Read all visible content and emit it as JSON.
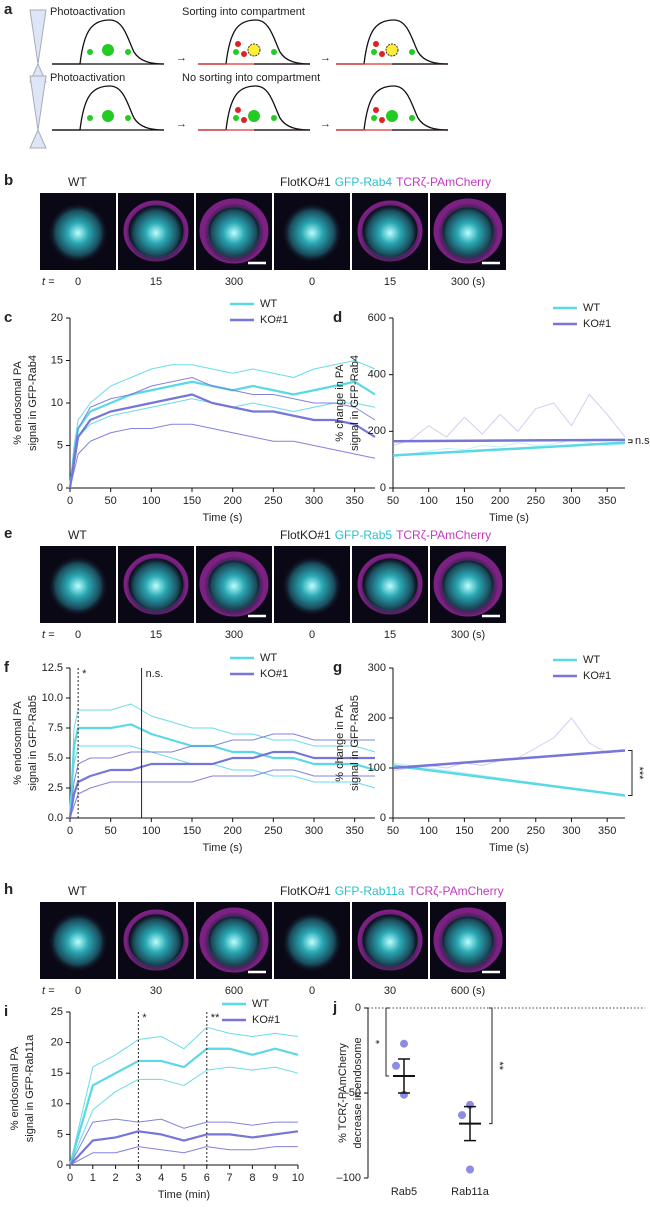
{
  "figure": {
    "a": {
      "label": "a",
      "row1": "Photoactivation",
      "row1_result": "Sorting into compartment",
      "row2": "Photoactivation",
      "row2_result": "No sorting into compartment"
    },
    "b": {
      "label": "b",
      "left": "WT",
      "right": "FlotKO#1",
      "green": "GFP-Rab4",
      "magenta": "TCRζ-PAmCherry",
      "t": "t =",
      "times": [
        "0",
        "15",
        "300",
        "0",
        "15",
        "300 (s)"
      ]
    },
    "e": {
      "label": "e",
      "left": "WT",
      "right": "FlotKO#1",
      "green": "GFP-Rab5",
      "magenta": "TCRζ-PAmCherry",
      "t": "t =",
      "times": [
        "0",
        "15",
        "300",
        "0",
        "15",
        "300 (s)"
      ]
    },
    "h": {
      "label": "h",
      "left": "WT",
      "right": "FlotKO#1",
      "green": "GFP-Rab11a",
      "magenta": "TCRζ-PAmCherry",
      "t": "t =",
      "times": [
        "0",
        "30",
        "600",
        "0",
        "30",
        "600 (s)"
      ]
    }
  },
  "chart_data": [
    {
      "type": "line",
      "panel": "c",
      "ylabel": [
        "% endosomal PA",
        "signal in GFP-Rab4"
      ],
      "xlabel": "Time (s)",
      "x": [
        0,
        5,
        10,
        25,
        50,
        75,
        100,
        125,
        150,
        175,
        200,
        225,
        250,
        275,
        300,
        325,
        350,
        375
      ],
      "xlim": [
        0,
        375
      ],
      "xticks": [
        0,
        50,
        100,
        150,
        200,
        250,
        300,
        350
      ],
      "ylim": [
        0,
        20
      ],
      "yticks": [
        0,
        5,
        10,
        15,
        20
      ],
      "series": [
        {
          "name": "WT",
          "color": "#5ad8e6",
          "values": [
            0,
            4,
            7,
            9,
            10,
            11,
            11.5,
            12,
            12.5,
            12,
            11.5,
            12,
            11.5,
            11,
            11.5,
            12,
            12.5,
            11
          ],
          "upper": [
            0,
            5,
            8,
            10,
            12,
            13,
            14,
            14.5,
            14.5,
            14,
            13.5,
            14,
            13.5,
            13,
            14,
            14.5,
            15,
            14
          ],
          "lower": [
            0,
            3,
            6,
            7.5,
            8.5,
            9,
            9.5,
            10,
            10.5,
            10,
            9.5,
            10,
            9.5,
            9,
            9.5,
            10,
            10,
            9.5
          ]
        },
        {
          "name": "KO#1",
          "color": "#7676d8",
          "values": [
            0,
            3,
            6,
            8,
            9,
            9.5,
            10,
            10.5,
            11,
            10,
            9.5,
            9,
            9,
            8.5,
            8,
            8,
            7.5,
            6
          ],
          "upper": [
            0,
            4,
            7,
            9.5,
            10.5,
            11,
            12,
            12.5,
            13,
            12,
            11.5,
            11,
            11,
            10.5,
            10,
            10,
            9.5,
            8
          ],
          "lower": [
            0,
            2,
            4,
            5.5,
            6.5,
            7,
            7,
            7.5,
            7.5,
            7,
            6.5,
            6,
            5.5,
            5.5,
            5,
            4.5,
            4,
            3.5
          ]
        }
      ]
    },
    {
      "type": "line",
      "panel": "d",
      "ylabel": [
        "% change in PA",
        "signal in GFP-Rab4"
      ],
      "xlabel": "Time (s)",
      "x": [
        50,
        75,
        100,
        125,
        150,
        175,
        200,
        225,
        250,
        275,
        300,
        325,
        350,
        375
      ],
      "xlim": [
        50,
        375
      ],
      "xticks": [
        50,
        100,
        150,
        200,
        250,
        300,
        350
      ],
      "ylim": [
        0,
        600
      ],
      "yticks": [
        0,
        200,
        400,
        600
      ],
      "series": [
        {
          "name": "WT",
          "color": "#5ad8e6",
          "values": [
            110,
            120,
            130,
            140,
            135,
            150,
            145,
            160,
            150,
            155,
            170,
            160,
            150,
            155
          ],
          "fit": [
            115,
            160
          ]
        },
        {
          "name": "KO#1",
          "color": "#7676d8",
          "values": [
            150,
            170,
            220,
            180,
            250,
            190,
            260,
            200,
            280,
            300,
            220,
            330,
            260,
            180
          ],
          "fit": [
            165,
            170
          ]
        }
      ],
      "annotations": [
        {
          "text": "n.s."
        }
      ]
    },
    {
      "type": "line",
      "panel": "f",
      "ylabel": [
        "% endosomal PA",
        "signal in GFP-Rab5"
      ],
      "xlabel": "Time (s)",
      "x": [
        0,
        5,
        10,
        25,
        50,
        75,
        100,
        125,
        150,
        175,
        200,
        225,
        250,
        275,
        300,
        325,
        350,
        375
      ],
      "xlim": [
        0,
        375
      ],
      "xticks": [
        0,
        50,
        100,
        150,
        200,
        250,
        300,
        350
      ],
      "ylim": [
        0,
        12.5
      ],
      "yticks": [
        {
          "value": 0,
          "label": "0.0"
        },
        2.5,
        {
          "value": 5,
          "label": "5.0"
        },
        7.5,
        {
          "value": 10,
          "label": "10.0"
        },
        12.5
      ],
      "series": [
        {
          "name": "WT",
          "color": "#5ad8e6",
          "values": [
            0,
            6,
            7.5,
            7.5,
            7.5,
            7.8,
            7,
            6.5,
            6,
            6,
            5.5,
            5.5,
            5,
            5,
            4.5,
            4.5,
            4.5,
            4
          ],
          "upper": [
            0,
            7.5,
            9,
            9,
            9,
            9.5,
            8.5,
            8,
            7.5,
            7.5,
            7,
            7,
            6.5,
            6.5,
            6,
            6,
            6,
            5.5
          ],
          "lower": [
            0,
            4.5,
            6,
            6,
            6,
            6,
            5.5,
            5,
            4.5,
            4.5,
            4,
            4,
            3.5,
            3.5,
            3,
            3,
            3,
            2.5
          ]
        },
        {
          "name": "KO#1",
          "color": "#7676d8",
          "values": [
            0,
            2,
            3,
            3.5,
            4,
            4,
            4.5,
            4.5,
            4.5,
            4.5,
            5,
            5,
            5.5,
            5.5,
            5,
            5,
            5,
            5
          ],
          "upper": [
            0,
            3,
            4.5,
            5,
            5,
            5.5,
            5.5,
            5.5,
            6,
            6,
            6.5,
            6.5,
            7,
            7,
            6.5,
            6.5,
            6.5,
            6.5
          ],
          "lower": [
            0,
            1,
            2,
            2.5,
            3,
            3,
            3,
            3,
            3,
            3.5,
            3.5,
            3.5,
            4,
            4,
            3.5,
            3.5,
            3.5,
            3.5
          ]
        }
      ],
      "annotations": [
        {
          "text": "*",
          "x": 10,
          "style": "dotted"
        },
        {
          "text": "n.s.",
          "x": 88,
          "style": "solid"
        }
      ]
    },
    {
      "type": "line",
      "panel": "g",
      "ylabel": [
        "% change in PA",
        "signal in GFP-Rab5"
      ],
      "xlabel": "Time (s)",
      "x": [
        50,
        75,
        100,
        125,
        150,
        175,
        200,
        225,
        250,
        275,
        300,
        325,
        350,
        375
      ],
      "xlim": [
        50,
        375
      ],
      "xticks": [
        50,
        100,
        150,
        200,
        250,
        300,
        350
      ],
      "ylim": [
        0,
        300
      ],
      "yticks": [
        0,
        100,
        200,
        300
      ],
      "series": [
        {
          "name": "WT",
          "color": "#5ad8e6",
          "values": [
            110,
            105,
            100,
            95,
            90,
            85,
            80,
            75,
            70,
            65,
            60,
            55,
            50,
            45
          ],
          "fit": [
            105,
            45
          ]
        },
        {
          "name": "KO#1",
          "color": "#7676d8",
          "values": [
            95,
            100,
            105,
            100,
            110,
            105,
            115,
            120,
            140,
            160,
            200,
            150,
            130,
            135
          ],
          "fit": [
            100,
            135
          ]
        }
      ],
      "annotations": [
        {
          "text": "***"
        }
      ]
    },
    {
      "type": "line",
      "panel": "i",
      "ylabel": [
        "% endosomal PA",
        "signal in GFP-Rab11a"
      ],
      "xlabel": "Time (min)",
      "x": [
        0,
        1,
        2,
        3,
        4,
        5,
        6,
        7,
        8,
        9,
        10
      ],
      "xlim": [
        0,
        10
      ],
      "xticks": [
        0,
        1,
        2,
        3,
        4,
        5,
        6,
        7,
        8,
        9,
        10
      ],
      "ylim": [
        0,
        25
      ],
      "yticks": [
        0,
        5,
        10,
        15,
        20,
        25
      ],
      "series": [
        {
          "name": "WT",
          "color": "#5ad8e6",
          "values": [
            0,
            13,
            15,
            17,
            17,
            16,
            19,
            19,
            18,
            19,
            18
          ],
          "upper": [
            0,
            16,
            18,
            20.5,
            21,
            19,
            22.5,
            21.5,
            21,
            21.5,
            21
          ],
          "lower": [
            0,
            9,
            12,
            14,
            14,
            13,
            15.5,
            16,
            15.5,
            16,
            15
          ]
        },
        {
          "name": "KO#1",
          "color": "#7676d8",
          "values": [
            0,
            4,
            4.5,
            5.5,
            5,
            4,
            5,
            5,
            4.5,
            5,
            5.5
          ],
          "upper": [
            0,
            7,
            7.5,
            7,
            7.5,
            6,
            7,
            7,
            6.5,
            7,
            7
          ],
          "lower": [
            0,
            2,
            2,
            3,
            2.5,
            2,
            3,
            2.5,
            2.5,
            3,
            3
          ]
        }
      ],
      "annotations": [
        {
          "text": "*",
          "x": 3,
          "style": "dotted"
        },
        {
          "text": "**",
          "x": 6,
          "style": "dotted"
        }
      ]
    },
    {
      "type": "dot",
      "panel": "j",
      "ylabel": [
        "% TCRζ-PAmCherry",
        "decrease in endosome"
      ],
      "categories": [
        "Rab5",
        "Rab11a"
      ],
      "color": "#8c8ce2",
      "points": [
        [
          -21,
          -34,
          -51
        ],
        [
          -57,
          -63,
          -95
        ]
      ],
      "means": [
        -40,
        -68
      ],
      "errors": [
        10,
        10
      ],
      "ylim": [
        -100,
        0
      ],
      "yticks": [
        0,
        {
          "value": -50,
          "label": "–50"
        },
        {
          "value": -100,
          "label": "–100"
        }
      ],
      "annotations": [
        {
          "text": "*"
        },
        {
          "text": "**"
        }
      ]
    }
  ]
}
